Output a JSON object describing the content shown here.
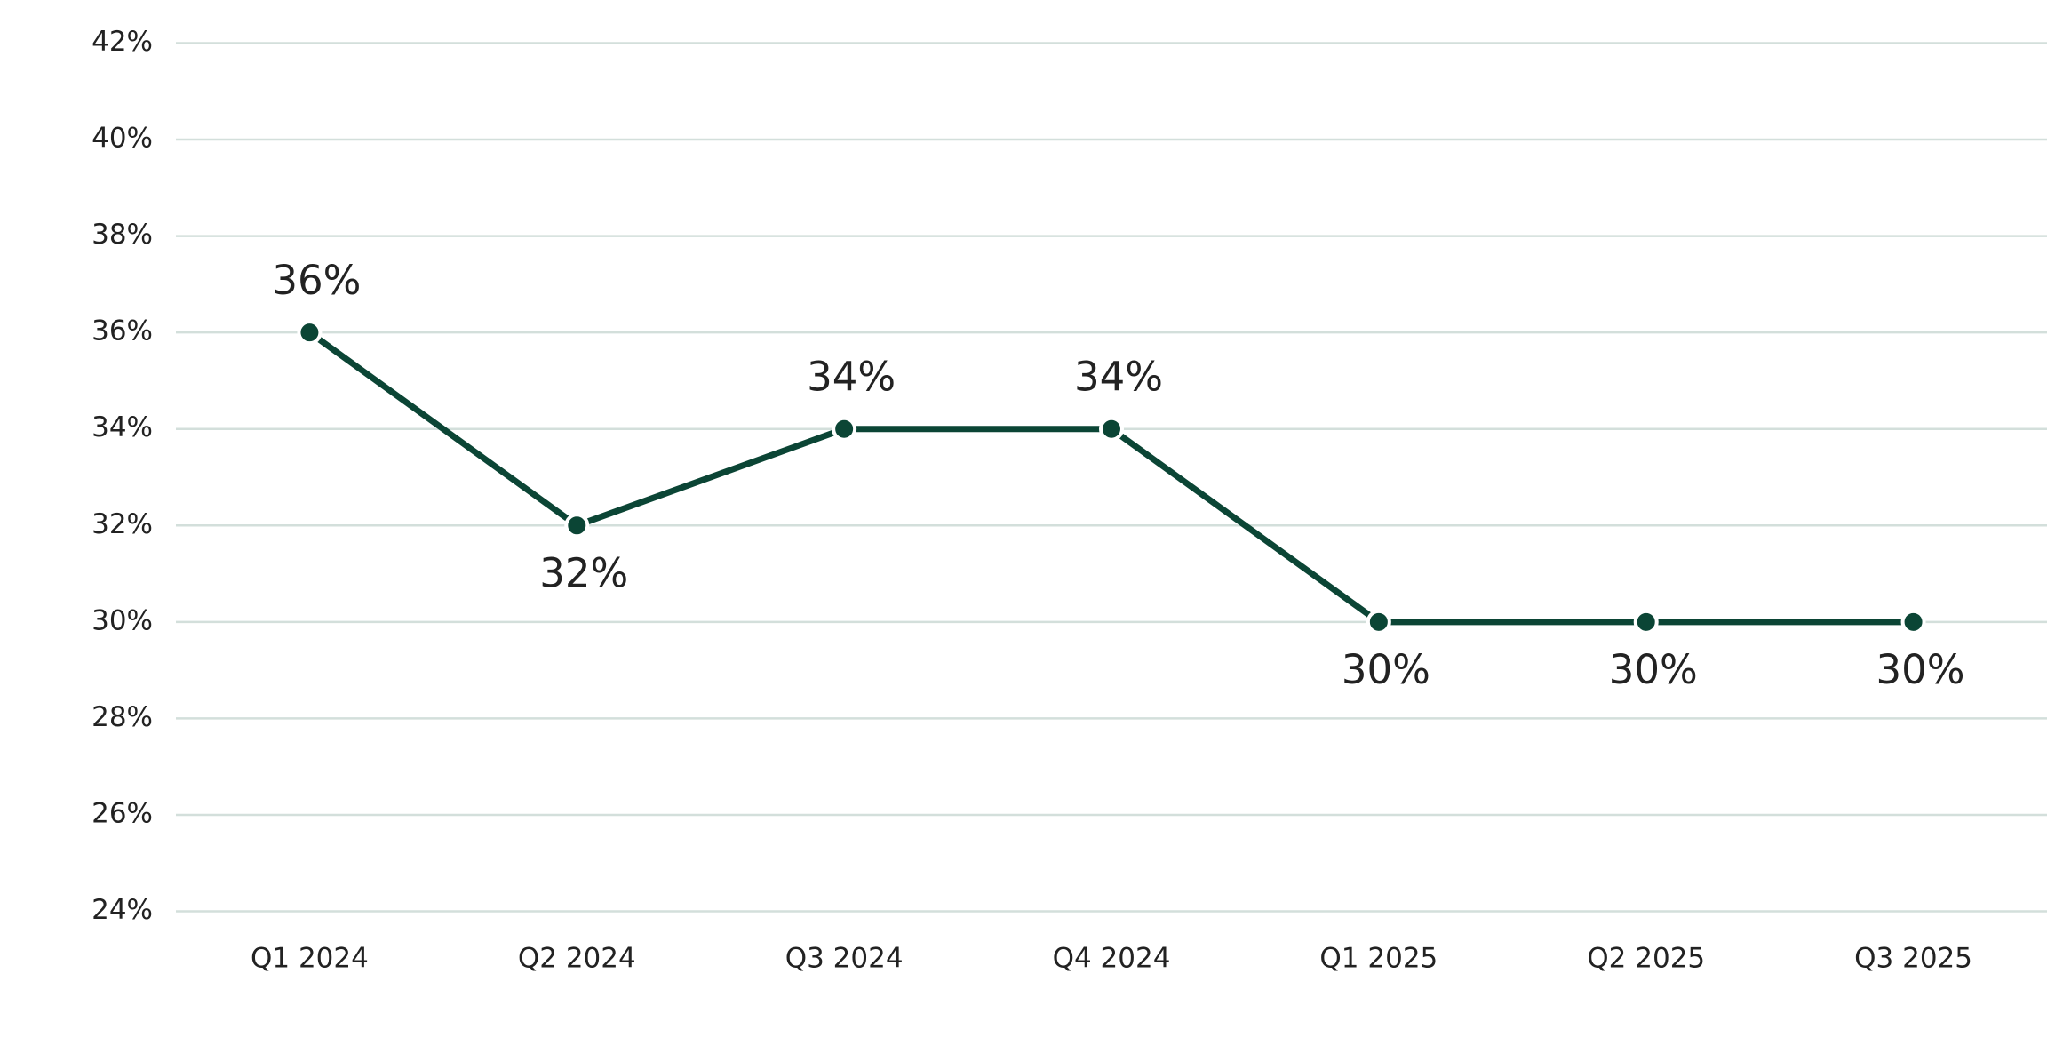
{
  "chart_data": {
    "type": "line",
    "categories": [
      "Q1 2024",
      "Q2 2024",
      "Q3 2024",
      "Q4 2024",
      "Q1 2025",
      "Q2 2025",
      "Q3 2025"
    ],
    "values": [
      36,
      32,
      34,
      34,
      30,
      30,
      30
    ],
    "value_labels": [
      "36%",
      "32%",
      "34%",
      "34%",
      "30%",
      "30%",
      "30%"
    ],
    "color": "#0b4535",
    "ylim": [
      24,
      42
    ],
    "yticks": [
      {
        "value": 24,
        "label": "24%"
      },
      {
        "value": 26,
        "label": "26%"
      },
      {
        "value": 28,
        "label": "28%"
      },
      {
        "value": 30,
        "label": "30%"
      },
      {
        "value": 32,
        "label": "32%"
      },
      {
        "value": 34,
        "label": "34%"
      },
      {
        "value": 36,
        "label": "36%"
      },
      {
        "value": 38,
        "label": "38%"
      },
      {
        "value": 40,
        "label": "40%"
      },
      {
        "value": 42,
        "label": "42%"
      }
    ],
    "grid": true
  }
}
